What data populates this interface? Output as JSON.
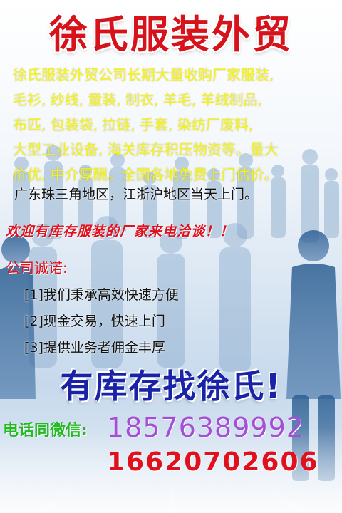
{
  "title": "徐氏服装外贸",
  "description_lines": [
    "徐氏服装外贸公司长期大量收购厂家服装,",
    "毛衫, 纱线, 童装, 制衣, 羊毛, 羊绒制品,",
    "布匹, 包装袋, 拉链, 手套, 染纺厂废料,",
    "大型工业设备, 海关库存积压物资等。量大",
    "价优, 中介厚酬。全国各地免费上门估价。"
  ],
  "service_area": "广东珠三角地区，江浙沪地区当天上门。",
  "welcome": "欢迎有库存服装的厂家来电洽谈！！",
  "commitments": {
    "heading": "公司诚诺:",
    "items": [
      "[1]我们秉承高效快速方便",
      "[2]现金交易，快速上门",
      "[3]提供业务者佣金丰厚"
    ]
  },
  "slogan": "有库存找徐氏!",
  "contact": {
    "label": "电话同微信:",
    "phone_1": "18576389992",
    "phone_2": "16620702606"
  },
  "colors": {
    "title_red": "#d6121a",
    "desc_yellow": "#f4f21a",
    "slogan_blue": "#1a23a8",
    "label_green": "#25b825",
    "phone1_purple": "#a64dd6",
    "phone2_red": "#e0101c"
  }
}
